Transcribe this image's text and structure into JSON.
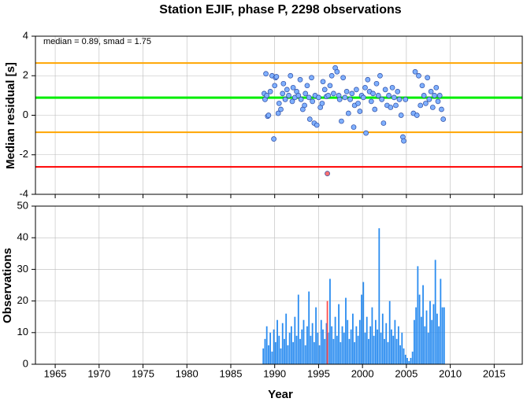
{
  "chart_data": [
    {
      "type": "scatter",
      "title": "Station EJIF, phase P, 2298 observations",
      "ylabel": "Median residual [s]",
      "annotation": "median = 0.89, smad = 1.75",
      "xlim": [
        1962.75,
        2018.2
      ],
      "xticks": [
        1965,
        1970,
        1975,
        1980,
        1985,
        1990,
        1995,
        2000,
        2005,
        2010,
        2015
      ],
      "ylim": [
        -4,
        4
      ],
      "yticks": [
        -4,
        -2,
        0,
        2,
        4
      ],
      "grid": true,
      "reference_lines": [
        {
          "value": 2.64,
          "color": "#ffa500"
        },
        {
          "value": 0.89,
          "color": "#00ee00"
        },
        {
          "value": -0.86,
          "color": "#ffa500"
        },
        {
          "value": -2.61,
          "color": "#ff0000"
        }
      ],
      "series": [
        {
          "color": "#7fb0ff",
          "x": [
            1988.8,
            1988.9,
            1989.0,
            1989.1,
            1989.2,
            1989.3,
            1989.5,
            1989.7,
            1989.9,
            1990.0,
            1990.1,
            1990.2,
            1990.4,
            1990.5,
            1990.7,
            1990.9,
            1991.0,
            1991.2,
            1991.4,
            1991.6,
            1991.8,
            1992.0,
            1992.1,
            1992.3,
            1992.5,
            1992.7,
            1992.9,
            1993.0,
            1993.2,
            1993.4,
            1993.5,
            1993.7,
            1993.9,
            1994.0,
            1994.2,
            1994.3,
            1994.5,
            1994.6,
            1994.8,
            1995.0,
            1995.2,
            1995.4,
            1995.5,
            1995.7,
            1995.9,
            1996.1,
            1996.3,
            1996.5,
            1996.7,
            1996.9,
            1997.1,
            1997.3,
            1997.4,
            1997.6,
            1997.8,
            1998.0,
            1998.2,
            1998.4,
            1998.6,
            1998.8,
            1999.0,
            1999.1,
            1999.3,
            1999.5,
            1999.7,
            1999.9,
            2000.1,
            2000.3,
            2000.4,
            2000.6,
            2000.8,
            2001.0,
            2001.2,
            2001.4,
            2001.6,
            2001.8,
            2002.0,
            2002.2,
            2002.4,
            2002.6,
            2002.8,
            2003.0,
            2003.2,
            2003.4,
            2003.6,
            2003.8,
            2004.0,
            2004.2,
            2004.4,
            2004.6,
            2004.7,
            2004.9,
            2005.8,
            2006.0,
            2006.2,
            2006.4,
            2006.6,
            2006.8,
            2007.0,
            2007.2,
            2007.4,
            2007.6,
            2007.8,
            2008.0,
            2008.2,
            2008.4,
            2008.6,
            2008.8,
            2009.0,
            2009.2
          ],
          "values": [
            1.1,
            0.8,
            2.1,
            1.0,
            -0.05,
            0.0,
            1.2,
            2.0,
            -1.2,
            1.5,
            1.9,
            1.95,
            0.1,
            0.6,
            0.3,
            1.1,
            1.6,
            0.8,
            1.3,
            1.0,
            2.0,
            0.7,
            1.4,
            0.9,
            1.2,
            1.0,
            1.8,
            0.8,
            0.3,
            0.5,
            1.1,
            1.5,
            0.9,
            -0.2,
            1.9,
            0.7,
            -0.4,
            1.0,
            -0.5,
            0.9,
            0.4,
            0.6,
            1.7,
            1.3,
            0.95,
            1.0,
            1.5,
            2.0,
            1.1,
            2.4,
            2.2,
            1.0,
            0.8,
            -0.3,
            1.9,
            0.9,
            1.2,
            0.1,
            0.8,
            1.1,
            -0.6,
            0.5,
            1.3,
            0.6,
            0.2,
            1.0,
            0.9,
            1.4,
            -0.9,
            1.8,
            1.2,
            0.7,
            1.1,
            0.3,
            1.6,
            1.0,
            2.0,
            0.8,
            -0.4,
            1.3,
            0.5,
            1.0,
            0.4,
            1.4,
            0.9,
            0.5,
            1.2,
            0.8,
            0.0,
            -1.1,
            -1.3,
            0.8,
            0.1,
            2.2,
            0.0,
            2.0,
            0.5,
            1.5,
            1.0,
            0.6,
            1.9,
            0.8,
            1.2,
            0.4,
            1.0,
            1.4,
            0.7,
            1.0,
            0.3,
            -0.2
          ]
        },
        {
          "color": "#ff7070",
          "x": [
            1996.0
          ],
          "values": [
            -2.95
          ]
        }
      ]
    },
    {
      "type": "bar",
      "ylabel": "Observations",
      "xlabel": "Year",
      "xlim": [
        1962.75,
        2018.2
      ],
      "xticks": [
        1965,
        1970,
        1975,
        1980,
        1985,
        1990,
        1995,
        2000,
        2005,
        2010,
        2015
      ],
      "ylim": [
        0,
        50
      ],
      "yticks": [
        0,
        10,
        20,
        30,
        40,
        50
      ],
      "grid": true,
      "series": [
        {
          "color": "#2a8cf0",
          "x": [
            1988.7,
            1988.9,
            1989.1,
            1989.3,
            1989.5,
            1989.7,
            1989.9,
            1990.1,
            1990.3,
            1990.5,
            1990.7,
            1990.9,
            1991.1,
            1991.3,
            1991.5,
            1991.7,
            1991.9,
            1992.1,
            1992.3,
            1992.5,
            1992.7,
            1992.9,
            1993.1,
            1993.3,
            1993.5,
            1993.7,
            1993.9,
            1994.1,
            1994.3,
            1994.5,
            1994.7,
            1994.9,
            1995.1,
            1995.3,
            1995.5,
            1995.7,
            1995.9,
            1996.1,
            1996.3,
            1996.5,
            1996.7,
            1996.9,
            1997.1,
            1997.3,
            1997.5,
            1997.7,
            1997.9,
            1998.1,
            1998.3,
            1998.5,
            1998.7,
            1998.9,
            1999.1,
            1999.3,
            1999.5,
            1999.7,
            1999.9,
            2000.1,
            2000.3,
            2000.5,
            2000.7,
            2000.9,
            2001.1,
            2001.3,
            2001.5,
            2001.7,
            2001.9,
            2002.1,
            2002.3,
            2002.5,
            2002.7,
            2002.9,
            2003.1,
            2003.3,
            2003.5,
            2003.7,
            2003.9,
            2004.1,
            2004.3,
            2004.5,
            2004.7,
            2004.9,
            2005.1,
            2005.3,
            2005.5,
            2005.7,
            2005.9,
            2006.1,
            2006.3,
            2006.5,
            2006.7,
            2006.9,
            2007.1,
            2007.3,
            2007.5,
            2007.7,
            2007.9,
            2008.1,
            2008.3,
            2008.5,
            2008.7,
            2008.9,
            2009.1,
            2009.3
          ],
          "values": [
            5,
            8,
            12,
            6,
            10,
            4,
            11,
            7,
            14,
            9,
            5,
            13,
            8,
            16,
            6,
            10,
            12,
            7,
            15,
            9,
            22,
            8,
            11,
            14,
            6,
            12,
            23,
            9,
            13,
            7,
            18,
            10,
            6,
            14,
            11,
            8,
            13,
            10,
            27,
            12,
            8,
            15,
            9,
            19,
            7,
            12,
            10,
            21,
            14,
            8,
            11,
            16,
            7,
            12,
            9,
            14,
            22,
            26,
            10,
            15,
            8,
            12,
            18,
            9,
            14,
            11,
            43,
            10,
            16,
            8,
            13,
            7,
            20,
            11,
            9,
            14,
            8,
            12,
            6,
            10,
            5,
            3,
            2,
            1,
            2,
            4,
            14,
            18,
            31,
            22,
            15,
            25,
            12,
            17,
            10,
            20,
            14,
            19,
            33,
            16,
            12,
            27,
            18,
            18
          ]
        },
        {
          "color": "#ff5050",
          "x": [
            1996.0
          ],
          "values": [
            20
          ]
        }
      ]
    }
  ]
}
